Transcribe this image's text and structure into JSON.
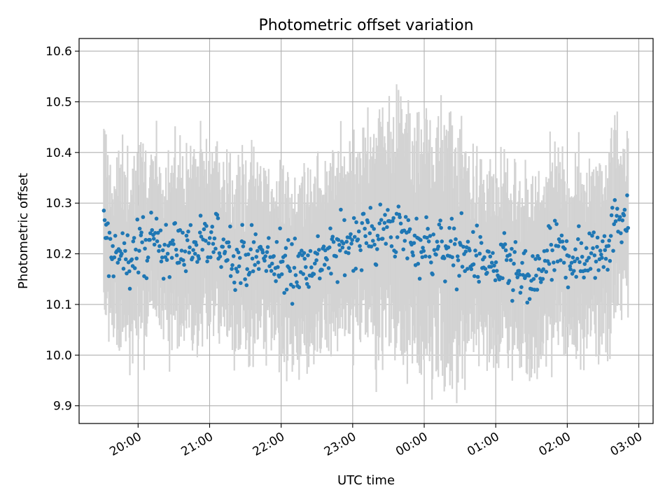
{
  "chart_data": {
    "type": "scatter",
    "title": "Photometric offset variation",
    "xlabel": "UTC time",
    "ylabel": "Photometric offset",
    "grid": true,
    "x_unit": "hours",
    "x_tick_values": [
      20,
      21,
      22,
      23,
      24,
      25,
      26,
      27
    ],
    "x_tick_labels": [
      "20:00",
      "21:00",
      "22:00",
      "23:00",
      "00:00",
      "01:00",
      "02:00",
      "03:00"
    ],
    "xlim": [
      19.175,
      27.2
    ],
    "ylim": [
      9.865,
      10.625
    ],
    "y_ticks": [
      9.9,
      10.0,
      10.1,
      10.2,
      10.3,
      10.4,
      10.5,
      10.6
    ],
    "y_tick_labels": [
      "9.9",
      "10.0",
      "10.1",
      "10.2",
      "10.3",
      "10.4",
      "10.5",
      "10.6"
    ],
    "series": [
      {
        "style": "errorbar",
        "marker_color": "#1f77b4",
        "errorbar_color": "#d3d3d3",
        "x_start": 19.52,
        "x_end": 26.85,
        "n_points": 640,
        "typical_error": 0.15,
        "trend": [
          [
            19.52,
            10.26
          ],
          [
            19.6,
            10.2
          ],
          [
            19.8,
            10.19
          ],
          [
            20.0,
            10.21
          ],
          [
            20.3,
            10.22
          ],
          [
            20.6,
            10.21
          ],
          [
            20.9,
            10.22
          ],
          [
            21.2,
            10.22
          ],
          [
            21.4,
            10.19
          ],
          [
            21.6,
            10.2
          ],
          [
            21.8,
            10.19
          ],
          [
            22.0,
            10.17
          ],
          [
            22.3,
            10.18
          ],
          [
            22.5,
            10.19
          ],
          [
            22.7,
            10.2
          ],
          [
            23.0,
            10.23
          ],
          [
            23.3,
            10.24
          ],
          [
            23.6,
            10.25
          ],
          [
            23.8,
            10.23
          ],
          [
            24.0,
            10.22
          ],
          [
            24.3,
            10.21
          ],
          [
            24.6,
            10.2
          ],
          [
            24.9,
            10.18
          ],
          [
            25.2,
            10.17
          ],
          [
            25.4,
            10.14
          ],
          [
            25.6,
            10.16
          ],
          [
            25.8,
            10.2
          ],
          [
            26.1,
            10.19
          ],
          [
            26.4,
            10.2
          ],
          [
            26.6,
            10.24
          ],
          [
            26.85,
            10.29
          ]
        ]
      }
    ]
  }
}
